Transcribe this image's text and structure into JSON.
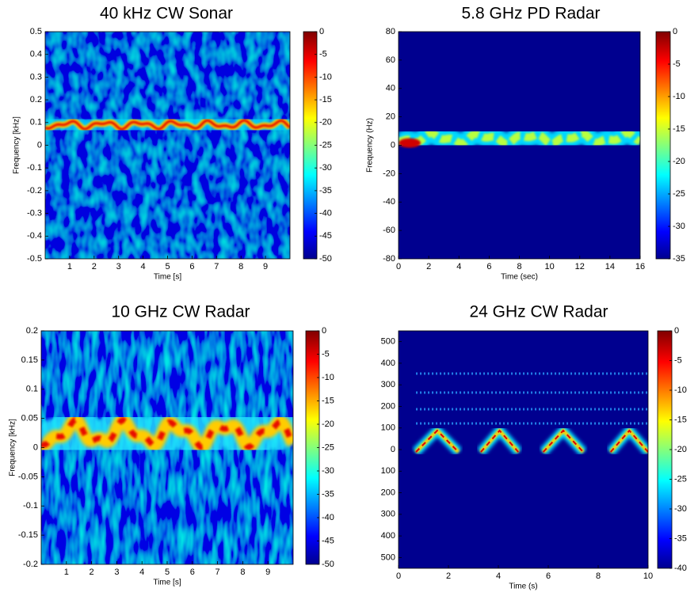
{
  "chart_data": [
    {
      "type": "spectrogram",
      "title": "40 kHz CW Sonar",
      "xlabel": "Time [s]",
      "ylabel": "Frequency [kHz]",
      "xlim": [
        0,
        10
      ],
      "xticks": [
        1,
        2,
        3,
        4,
        5,
        6,
        7,
        8,
        9
      ],
      "ylim": [
        -0.5,
        0.5
      ],
      "yticks": [
        -0.5,
        -0.4,
        -0.3,
        -0.2,
        -0.1,
        0,
        0.1,
        0.2,
        0.3,
        0.4,
        0.5
      ],
      "clim": [
        -50,
        0
      ],
      "cticks": [
        -50,
        -45,
        -40,
        -35,
        -30,
        -25,
        -20,
        -15,
        -10,
        -5,
        0
      ]
    },
    {
      "type": "spectrogram",
      "title": "5.8 GHz PD Radar",
      "xlabel": "Time (sec)",
      "ylabel": "Frequency (Hz)",
      "xlim": [
        0,
        16
      ],
      "xticks": [
        0,
        2,
        4,
        6,
        8,
        10,
        12,
        14,
        16
      ],
      "ylim": [
        -80,
        80
      ],
      "yticks": [
        -80,
        -60,
        -40,
        -20,
        0,
        20,
        40,
        60,
        80
      ],
      "clim": [
        -35,
        0
      ],
      "cticks": [
        -35,
        -30,
        -25,
        -20,
        -15,
        -10,
        -5,
        0
      ]
    },
    {
      "type": "spectrogram",
      "title": "10 GHz CW Radar",
      "xlabel": "Time [s]",
      "ylabel": "Frequency [kHz]",
      "xlim": [
        0,
        10
      ],
      "xticks": [
        1,
        2,
        3,
        4,
        5,
        6,
        7,
        8,
        9
      ],
      "ylim": [
        -0.2,
        0.2
      ],
      "yticks": [
        -0.2,
        -0.15,
        -0.1,
        -0.05,
        0,
        0.05,
        0.1,
        0.15,
        0.2
      ],
      "clim": [
        -50,
        0
      ],
      "cticks": [
        -50,
        -45,
        -40,
        -35,
        -30,
        -25,
        -20,
        -15,
        -10,
        -5,
        0
      ]
    },
    {
      "type": "spectrogram",
      "title": "24 GHz CW Radar",
      "xlabel": "Time (s)",
      "xlim": [
        0,
        10
      ],
      "xticks": [
        0,
        2,
        4,
        6,
        8,
        10
      ],
      "ylim": [
        -550,
        550
      ],
      "yticks": [
        {
          "value": -500,
          "label": "500"
        },
        {
          "value": -400,
          "label": "400"
        },
        {
          "value": -300,
          "label": "300"
        },
        {
          "value": -200,
          "label": "200"
        },
        {
          "value": -100,
          "label": "100"
        },
        0,
        100,
        200,
        300,
        400,
        500
      ],
      "clim": [
        -40,
        0
      ],
      "cticks": [
        -40,
        -35,
        -30,
        -25,
        -20,
        -15,
        -10,
        -5,
        0
      ]
    }
  ]
}
